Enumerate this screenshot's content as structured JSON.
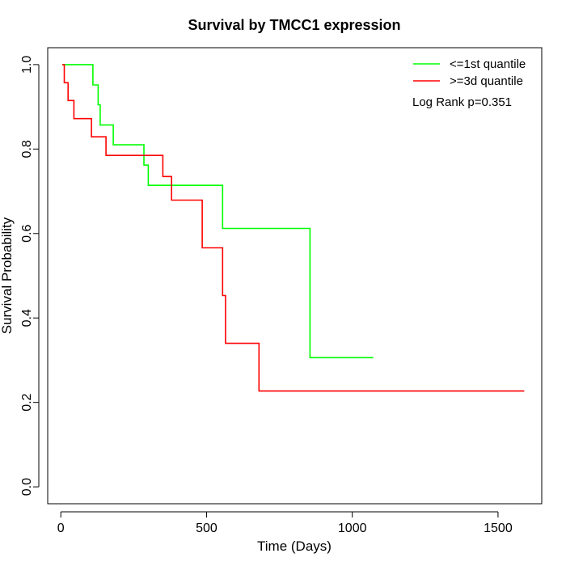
{
  "chart_data": {
    "type": "line",
    "subtype": "kaplan-meier-step",
    "title": "Survival by TMCC1 expression",
    "xlabel": "Time (Days)",
    "ylabel": "Survival Probability",
    "xlim": [
      -45,
      1650
    ],
    "ylim": [
      -0.04,
      1.04
    ],
    "x_ticks": [
      0,
      500,
      1000,
      1500
    ],
    "x_tick_labels": [
      "0",
      "500",
      "1000",
      "1500"
    ],
    "y_ticks": [
      0.0,
      0.2,
      0.4,
      0.6,
      0.8,
      1.0
    ],
    "y_tick_labels": [
      "0.0",
      "0.2",
      "0.4",
      "0.6",
      "0.8",
      "1.0"
    ],
    "grid": false,
    "legend_position": "top-right",
    "annotation": "Log Rank p=0.351",
    "series": [
      {
        "name": "<=1st quantile",
        "color": "#00ff00",
        "steps": [
          [
            5,
            1.0
          ],
          [
            110,
            1.0
          ],
          [
            110,
            0.952
          ],
          [
            128,
            0.952
          ],
          [
            128,
            0.905
          ],
          [
            135,
            0.905
          ],
          [
            135,
            0.857
          ],
          [
            180,
            0.857
          ],
          [
            180,
            0.81
          ],
          [
            285,
            0.81
          ],
          [
            285,
            0.762
          ],
          [
            300,
            0.762
          ],
          [
            300,
            0.714
          ],
          [
            555,
            0.714
          ],
          [
            555,
            0.612
          ],
          [
            855,
            0.612
          ],
          [
            855,
            0.306
          ],
          [
            1072,
            0.306
          ]
        ]
      },
      {
        "name": ">=3d quantile",
        "color": "#ff0000",
        "steps": [
          [
            5,
            1.0
          ],
          [
            12,
            1.0
          ],
          [
            12,
            0.957
          ],
          [
            25,
            0.957
          ],
          [
            25,
            0.915
          ],
          [
            45,
            0.915
          ],
          [
            45,
            0.872
          ],
          [
            105,
            0.872
          ],
          [
            105,
            0.829
          ],
          [
            155,
            0.829
          ],
          [
            155,
            0.785
          ],
          [
            350,
            0.785
          ],
          [
            350,
            0.735
          ],
          [
            380,
            0.735
          ],
          [
            380,
            0.679
          ],
          [
            485,
            0.679
          ],
          [
            485,
            0.566
          ],
          [
            555,
            0.566
          ],
          [
            555,
            0.453
          ],
          [
            565,
            0.453
          ],
          [
            565,
            0.34
          ],
          [
            680,
            0.34
          ],
          [
            680,
            0.227
          ],
          [
            1590,
            0.227
          ]
        ]
      }
    ]
  }
}
